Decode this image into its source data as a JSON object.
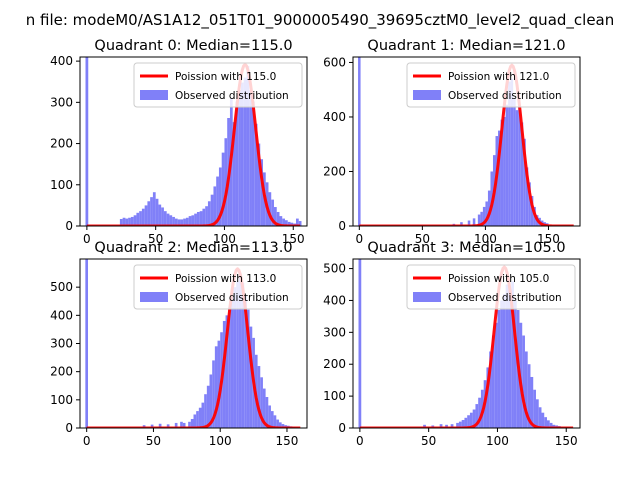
{
  "chart_data": {
    "suptitle": "n file: modeM0/AS1A12_051T01_9000005490_39695cztM0_level2_quad_clean",
    "type": "bar",
    "panels": [
      {
        "title": "Quadrant 0: Median=115.0",
        "xlim": [
          -5,
          160
        ],
        "ylim": [
          0,
          410
        ],
        "xticks": [
          0,
          50,
          100,
          150
        ],
        "yticks": [
          0,
          100,
          200,
          300,
          400
        ],
        "legend": {
          "poisson": "Poission with 115.0",
          "observed": "Observed distribution"
        },
        "poisson_mean": 115,
        "poisson_peak": 392,
        "curve_start": 0,
        "curve_end": 155,
        "zero_bin": 410,
        "hist": [
          [
            25,
            17
          ],
          [
            27,
            20
          ],
          [
            29,
            18
          ],
          [
            31,
            20
          ],
          [
            33,
            22
          ],
          [
            35,
            26
          ],
          [
            37,
            32
          ],
          [
            39,
            36
          ],
          [
            41,
            42
          ],
          [
            43,
            50
          ],
          [
            45,
            60
          ],
          [
            47,
            70
          ],
          [
            49,
            82
          ],
          [
            51,
            66
          ],
          [
            53,
            52
          ],
          [
            55,
            45
          ],
          [
            57,
            36
          ],
          [
            59,
            30
          ],
          [
            61,
            26
          ],
          [
            63,
            22
          ],
          [
            65,
            18
          ],
          [
            67,
            16
          ],
          [
            69,
            16
          ],
          [
            71,
            18
          ],
          [
            73,
            20
          ],
          [
            75,
            24
          ],
          [
            77,
            26
          ],
          [
            79,
            30
          ],
          [
            81,
            34
          ],
          [
            83,
            36
          ],
          [
            85,
            42
          ],
          [
            87,
            48
          ],
          [
            89,
            60
          ],
          [
            91,
            76
          ],
          [
            93,
            96
          ],
          [
            95,
            120
          ],
          [
            97,
            142
          ],
          [
            99,
            178
          ],
          [
            101,
            213
          ],
          [
            103,
            262
          ],
          [
            105,
            310
          ],
          [
            107,
            252
          ],
          [
            109,
            302
          ],
          [
            111,
            330
          ],
          [
            113,
            348
          ],
          [
            115,
            360
          ],
          [
            117,
            388
          ],
          [
            119,
            330
          ],
          [
            121,
            302
          ],
          [
            123,
            248
          ],
          [
            125,
            200
          ],
          [
            127,
            162
          ],
          [
            129,
            130
          ],
          [
            131,
            106
          ],
          [
            133,
            82
          ],
          [
            135,
            64
          ],
          [
            137,
            46
          ],
          [
            139,
            34
          ],
          [
            141,
            24
          ],
          [
            143,
            18
          ],
          [
            145,
            14
          ],
          [
            147,
            10
          ],
          [
            149,
            8
          ],
          [
            151,
            6
          ],
          [
            153,
            18
          ],
          [
            155,
            12
          ]
        ]
      },
      {
        "title": "Quadrant 1: Median=121.0",
        "xlim": [
          -5,
          175
        ],
        "ylim": [
          0,
          620
        ],
        "xticks": [
          0,
          50,
          100,
          150
        ],
        "yticks": [
          0,
          200,
          400,
          600
        ],
        "legend": {
          "poisson": "Poission with 121.0",
          "observed": "Observed distribution"
        },
        "poisson_mean": 121,
        "poisson_peak": 590,
        "curve_start": 0,
        "curve_end": 170,
        "zero_bin": 620,
        "hist": [
          [
            75,
            8
          ],
          [
            81,
            14
          ],
          [
            87,
            20
          ],
          [
            91,
            28
          ],
          [
            95,
            42
          ],
          [
            97,
            52
          ],
          [
            99,
            70
          ],
          [
            101,
            90
          ],
          [
            103,
            130
          ],
          [
            105,
            200
          ],
          [
            107,
            260
          ],
          [
            109,
            330
          ],
          [
            111,
            350
          ],
          [
            113,
            390
          ],
          [
            115,
            400
          ],
          [
            117,
            445
          ],
          [
            119,
            530
          ],
          [
            121,
            540
          ],
          [
            123,
            470
          ],
          [
            125,
            425
          ],
          [
            127,
            435
          ],
          [
            129,
            380
          ],
          [
            131,
            320
          ],
          [
            133,
            215
          ],
          [
            135,
            160
          ],
          [
            137,
            110
          ],
          [
            139,
            70
          ],
          [
            141,
            40
          ],
          [
            143,
            30
          ],
          [
            145,
            20
          ],
          [
            147,
            14
          ],
          [
            149,
            10
          ]
        ]
      },
      {
        "title": "Quadrant 2: Median=113.0",
        "xlim": [
          -5,
          165
        ],
        "ylim": [
          0,
          600
        ],
        "xticks": [
          0,
          50,
          100,
          150
        ],
        "yticks": [
          0,
          100,
          200,
          300,
          400,
          500
        ],
        "legend": {
          "poisson": "Poission with 113.0",
          "observed": "Observed distribution"
        },
        "poisson_mean": 113,
        "poisson_peak": 565,
        "curve_start": 0,
        "curve_end": 160,
        "zero_bin": 600,
        "hist": [
          [
            43,
            10
          ],
          [
            49,
            12
          ],
          [
            55,
            15
          ],
          [
            61,
            13
          ],
          [
            67,
            18
          ],
          [
            71,
            22
          ],
          [
            73,
            18
          ],
          [
            77,
            22
          ],
          [
            79,
            32
          ],
          [
            81,
            48
          ],
          [
            83,
            60
          ],
          [
            85,
            72
          ],
          [
            87,
            90
          ],
          [
            89,
            120
          ],
          [
            91,
            150
          ],
          [
            93,
            190
          ],
          [
            95,
            240
          ],
          [
            97,
            290
          ],
          [
            99,
            310
          ],
          [
            101,
            340
          ],
          [
            103,
            380
          ],
          [
            105,
            400
          ],
          [
            107,
            430
          ],
          [
            109,
            470
          ],
          [
            111,
            500
          ],
          [
            113,
            520
          ],
          [
            115,
            550
          ],
          [
            117,
            515
          ],
          [
            119,
            470
          ],
          [
            121,
            420
          ],
          [
            123,
            360
          ],
          [
            125,
            320
          ],
          [
            127,
            260
          ],
          [
            129,
            220
          ],
          [
            131,
            180
          ],
          [
            133,
            140
          ],
          [
            135,
            110
          ],
          [
            137,
            80
          ],
          [
            139,
            60
          ],
          [
            141,
            45
          ],
          [
            143,
            30
          ],
          [
            145,
            20
          ],
          [
            147,
            14
          ],
          [
            149,
            10
          ],
          [
            151,
            8
          ],
          [
            153,
            6
          ],
          [
            155,
            4
          ]
        ]
      },
      {
        "title": "Quadrant 3: Median=105.0",
        "xlim": [
          -5,
          160
        ],
        "ylim": [
          0,
          530
        ],
        "xticks": [
          0,
          50,
          100,
          150
        ],
        "yticks": [
          0,
          100,
          200,
          300,
          400,
          500
        ],
        "legend": {
          "poisson": "Poission with 105.0",
          "observed": "Observed distribution"
        },
        "poisson_mean": 105,
        "poisson_peak": 505,
        "curve_start": 0,
        "curve_end": 155,
        "zero_bin": 530,
        "hist": [
          [
            47,
            10
          ],
          [
            53,
            8
          ],
          [
            59,
            12
          ],
          [
            63,
            10
          ],
          [
            67,
            12
          ],
          [
            71,
            16
          ],
          [
            73,
            20
          ],
          [
            75,
            25
          ],
          [
            77,
            32
          ],
          [
            79,
            40
          ],
          [
            81,
            48
          ],
          [
            83,
            58
          ],
          [
            85,
            75
          ],
          [
            87,
            95
          ],
          [
            89,
            120
          ],
          [
            91,
            150
          ],
          [
            93,
            190
          ],
          [
            95,
            240
          ],
          [
            97,
            290
          ],
          [
            99,
            330
          ],
          [
            101,
            370
          ],
          [
            103,
            400
          ],
          [
            105,
            420
          ],
          [
            107,
            450
          ],
          [
            109,
            430
          ],
          [
            111,
            460
          ],
          [
            113,
            400
          ],
          [
            115,
            370
          ],
          [
            117,
            330
          ],
          [
            119,
            290
          ],
          [
            121,
            240
          ],
          [
            123,
            200
          ],
          [
            125,
            160
          ],
          [
            127,
            120
          ],
          [
            129,
            90
          ],
          [
            131,
            65
          ],
          [
            133,
            48
          ],
          [
            135,
            34
          ],
          [
            137,
            24
          ],
          [
            139,
            16
          ],
          [
            141,
            10
          ],
          [
            143,
            8
          ],
          [
            145,
            6
          ]
        ]
      }
    ]
  }
}
